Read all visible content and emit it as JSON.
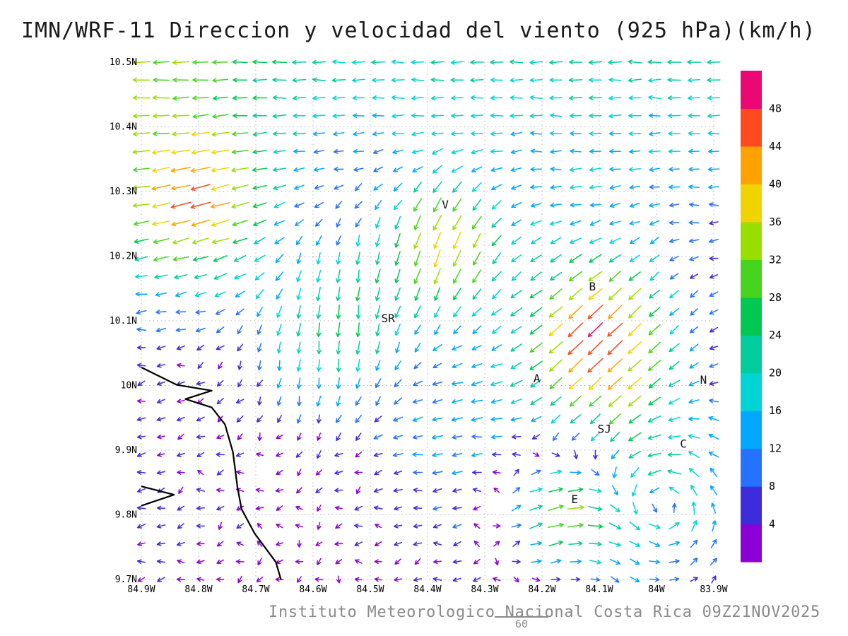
{
  "title": "IMN/WRF-11 Direccion y velocidad del viento (925 hPa)(km/h)",
  "footer": {
    "text": "Instituto Meteorologico Nacional Costa Rica 09Z21NOV2025",
    "forecast_hour": "60"
  },
  "axes": {
    "x_ticks": [
      "84.9W",
      "84.8W",
      "84.7W",
      "84.6W",
      "84.5W",
      "84.4W",
      "84.3W",
      "84.2W",
      "84.1W",
      "84W",
      "83.9W"
    ],
    "y_ticks": [
      "9.7N",
      "9.8N",
      "9.9N",
      "10N",
      "10.1N",
      "10.2N",
      "10.3N",
      "10.4N",
      "10.5N"
    ]
  },
  "chart_data": {
    "type": "vector_field",
    "title": "IMN/WRF-11 Direccion y velocidad del viento (925 hPa)(km/h)",
    "variable": "wind direction and speed",
    "level": "925 hPa",
    "speed_units": "km/h",
    "lon_range_deg": [
      -84.9,
      -83.9
    ],
    "lat_range_deg": [
      9.7,
      10.5
    ],
    "grid": {
      "nx": 30,
      "ny": 30
    },
    "speed_levels": [
      4,
      8,
      12,
      16,
      20,
      24,
      28,
      32,
      36,
      40,
      44,
      48
    ],
    "colorbar_colors_low_to_high": [
      "#8c00d8",
      "#3c2cdc",
      "#2472ff",
      "#00a8ff",
      "#00d4d4",
      "#00cc9c",
      "#00c851",
      "#46d41e",
      "#9ade00",
      "#f0d400",
      "#ffa200",
      "#ff4a1e",
      "#ec0874"
    ],
    "stations": [
      {
        "label": "V",
        "lon": -84.369,
        "lat": 10.274
      },
      {
        "label": "B",
        "lon": -84.112,
        "lat": 10.147
      },
      {
        "label": "SR",
        "lon": -84.469,
        "lat": 10.098
      },
      {
        "label": "A",
        "lon": -84.209,
        "lat": 10.005
      },
      {
        "label": "SJ",
        "lon": -84.091,
        "lat": 9.927
      },
      {
        "label": "C",
        "lon": -83.953,
        "lat": 9.904
      },
      {
        "label": "E",
        "lon": -84.143,
        "lat": 9.818
      },
      {
        "label": "N",
        "lon": -83.918,
        "lat": 10.003
      }
    ],
    "coastline": [
      [
        [
          -84.9,
          10.028
        ],
        [
          -84.838,
          10.001
        ],
        [
          -84.777,
          9.992
        ],
        [
          -84.823,
          9.979
        ],
        [
          -84.777,
          9.966
        ],
        [
          -84.754,
          9.94
        ],
        [
          -84.74,
          9.897
        ],
        [
          -84.732,
          9.842
        ],
        [
          -84.725,
          9.809
        ],
        [
          -84.702,
          9.771
        ],
        [
          -84.665,
          9.727
        ],
        [
          -84.656,
          9.7
        ]
      ],
      [
        [
          -84.9,
          9.844
        ],
        [
          -84.843,
          9.831
        ],
        [
          -84.9,
          9.814
        ]
      ]
    ],
    "flow_model": {
      "base": {
        "u_min": 5,
        "u_range": 21,
        "lat0": 10.05,
        "lat_span": 0.45,
        "west_boost_start": -84.55,
        "west_boost_span": 0.35,
        "west_factor": 0.45,
        "base_scale": 0.8,
        "v_south": -1.5
      },
      "jets": [
        {
          "lat": 10.28,
          "lon": -84.8,
          "sigma": 0.085,
          "amp": 28,
          "dir": [
            -0.92,
            -0.38
          ]
        },
        {
          "lat": 10.1,
          "lon": -84.56,
          "sigma": 0.1,
          "amp": 24,
          "dir": [
            0.05,
            -1.0
          ]
        },
        {
          "lat": 10.22,
          "lon": -84.37,
          "sigma": 0.075,
          "amp": 34,
          "dir": [
            -0.2,
            -0.98
          ]
        },
        {
          "lat": 10.07,
          "lon": -84.1,
          "sigma": 0.095,
          "amp": 44,
          "dir": [
            -0.68,
            -0.73
          ]
        },
        {
          "lat": 9.81,
          "lon": -84.16,
          "sigma": 0.07,
          "amp": 40,
          "dir": [
            0.92,
            0.39
          ]
        },
        {
          "lat": 9.95,
          "lon": -84.35,
          "sigma": 0.12,
          "amp": 12,
          "dir": [
            -1.0,
            0.0
          ]
        }
      ],
      "vortices": [
        {
          "lat": 9.82,
          "lon": -83.99,
          "sigma": 0.11,
          "amp": 22,
          "sense": 1
        }
      ],
      "damps": [
        {
          "lat": 10.0,
          "lon": -84.44,
          "sigma": 0.13,
          "amp": 0.8
        },
        {
          "lat": 9.82,
          "lon": -84.6,
          "sigma": 0.18,
          "amp": 0.75
        },
        {
          "lat": 10.1,
          "lon": -83.96,
          "sigma": 0.11,
          "amp": 0.7
        },
        {
          "lat": 10.22,
          "lon": -84.55,
          "sigma": 0.1,
          "amp": 0.6
        }
      ],
      "jitter": 2.2
    },
    "colorbar_position": "right",
    "grid_on": true
  }
}
